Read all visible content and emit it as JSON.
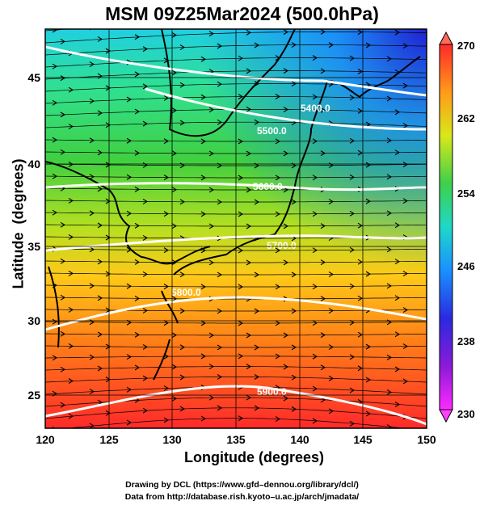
{
  "title": "MSM 09Z25Mar2024 (500.0hPa)",
  "axes": {
    "xlabel": "Longitude (degrees)",
    "ylabel": "Latitude  (degrees)",
    "xticks": [
      "120",
      "125",
      "130",
      "135",
      "140",
      "145",
      "150"
    ],
    "yticks": [
      "25",
      "30",
      "35",
      "40",
      "45"
    ]
  },
  "colorbar": {
    "ticks": [
      "270",
      "262",
      "254",
      "246",
      "238",
      "230"
    ],
    "colors": [
      "#ff2a2a",
      "#ff7a1a",
      "#ffc21a",
      "#d8e81a",
      "#3fd04a",
      "#1fd8c8",
      "#1a90ff",
      "#2a2ae0",
      "#7a1ad8",
      "#ff2aff"
    ]
  },
  "contours": {
    "labels": [
      "5400.0",
      "5500.0",
      "5600.0",
      "5700.0",
      "5800.0",
      "5900.0"
    ]
  },
  "credits": {
    "line1": "Drawing by DCL (https://www.gfd–dennou.org/library/dcl/)",
    "line2": "Data from http://database.rish.kyoto–u.ac.jp/arch/jmadata/"
  }
}
